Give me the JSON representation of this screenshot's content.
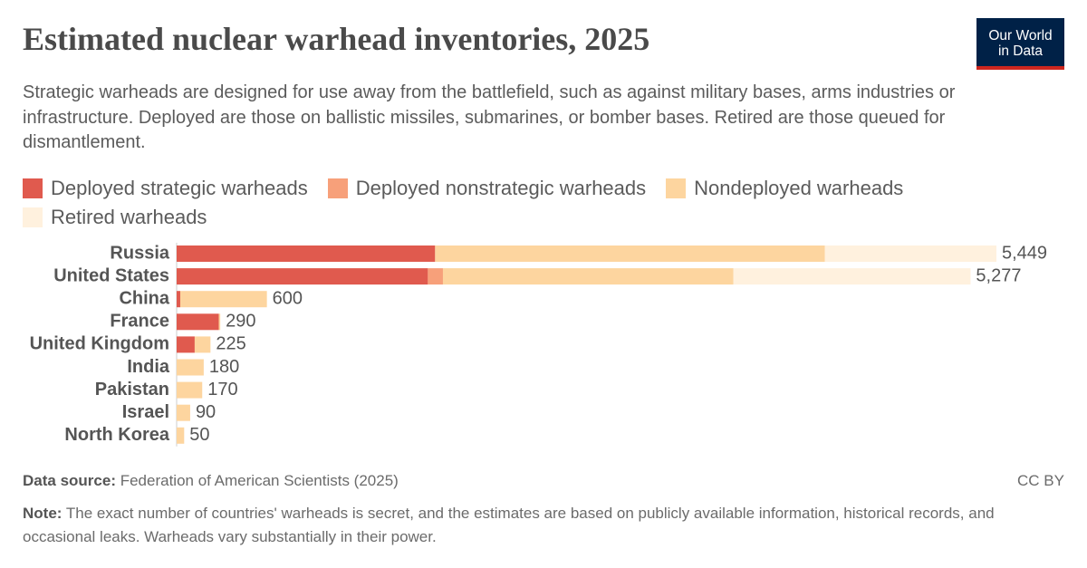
{
  "chart_data": {
    "type": "stacked-bar-horizontal",
    "title": "Estimated nuclear warhead inventories, 2025",
    "subtitle": "Strategic warheads are designed for use away from the battlefield, such as against military bases, arms industries or infrastructure. Deployed are those on ballistic missiles, submarines, or bomber bases. Retired are those queued for dismantlement.",
    "categories": [
      "Russia",
      "United States",
      "China",
      "France",
      "United Kingdom",
      "India",
      "Pakistan",
      "Israel",
      "North Korea"
    ],
    "series": [
      {
        "name": "Deployed strategic warheads",
        "color": "#e05a4e",
        "values": [
          1718,
          1670,
          24,
          280,
          120,
          0,
          0,
          0,
          0
        ]
      },
      {
        "name": "Deployed nonstrategic warheads",
        "color": "#f7a07a",
        "values": [
          0,
          100,
          0,
          0,
          0,
          0,
          0,
          0,
          0
        ]
      },
      {
        "name": "Nondeployed warheads",
        "color": "#fdd59f",
        "values": [
          2591,
          1930,
          576,
          10,
          105,
          180,
          170,
          90,
          50
        ]
      },
      {
        "name": "Retired warheads",
        "color": "#fff1de",
        "values": [
          1140,
          1577,
          0,
          0,
          0,
          0,
          0,
          0,
          0
        ]
      }
    ],
    "totals": [
      5449,
      5277,
      600,
      290,
      225,
      180,
      170,
      90,
      50
    ],
    "total_labels": [
      "5,449",
      "5,277",
      "600",
      "290",
      "225",
      "180",
      "170",
      "90",
      "50"
    ],
    "source_label": "Data source:",
    "source": "Federation of American Scientists (2025)",
    "license": "CC BY",
    "note_label": "Note:",
    "note": "The exact number of countries' warheads is secret, and the estimates are based on publicly available information, historical records, and occasional leaks. Warheads vary substantially in their power.",
    "logo": [
      "Our World",
      "in Data"
    ]
  }
}
